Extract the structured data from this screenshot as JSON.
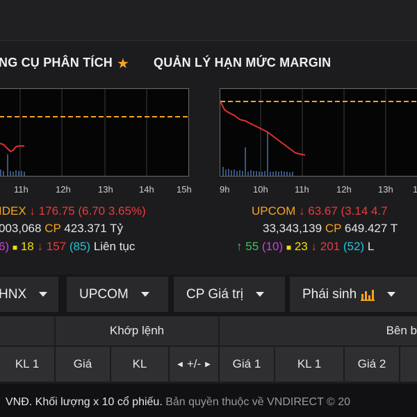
{
  "nav": {
    "item1": "NG CỤ PHÂN TÍCH",
    "item2": "QUẢN LÝ HẠN MỨC MARGIN",
    "star_icon": "star-icon"
  },
  "charts": [
    {
      "ticks": [
        "11h",
        "12h",
        "13h",
        "14h",
        "15h"
      ],
      "index_name": "IDEX",
      "value": "176.75",
      "change": "(6.70 3.65%)",
      "volume": "003,068",
      "cp_label": "CP",
      "cp_value": "423.371",
      "cp_unit": "Tỷ",
      "breadth": {
        "up_count": "6)",
        "flat": "18",
        "down": "157",
        "suspended": "(85)",
        "status": "Liên tục"
      }
    },
    {
      "ticks": [
        "9h",
        "10h",
        "11h",
        "12h",
        "13h",
        "1"
      ],
      "index_name": "UPCOM",
      "value": "63.67",
      "change": "(3.14 4.7",
      "volume": "33,343,139",
      "cp_label": "CP",
      "cp_value": "649.427",
      "cp_unit": "T",
      "breadth": {
        "up": "55",
        "ceiling": "(10)",
        "flat": "23",
        "down": "201",
        "floor": "(52)",
        "status": "L"
      }
    }
  ],
  "tabs": [
    {
      "label": "HNX"
    },
    {
      "label": "UPCOM"
    },
    {
      "label": "CP Giá trị"
    },
    {
      "label": "Phái sinh"
    }
  ],
  "table": {
    "group_matched": "Khớp lệnh",
    "group_buy": "Bên b",
    "cols": [
      "KL 1",
      "Giá",
      "KL",
      "+/-",
      "Giá 1",
      "KL 1",
      "Giá 2"
    ]
  },
  "footer": {
    "text_main": "VNĐ. Khối lượng x 10 cổ phiếu.",
    "text_copyright": "Bản quyền thuộc về VNDIRECT © 20"
  },
  "colors": {
    "ref_line": "#f7a423",
    "index_line": "#e23030",
    "volume_bar": "#6aa6ff"
  }
}
